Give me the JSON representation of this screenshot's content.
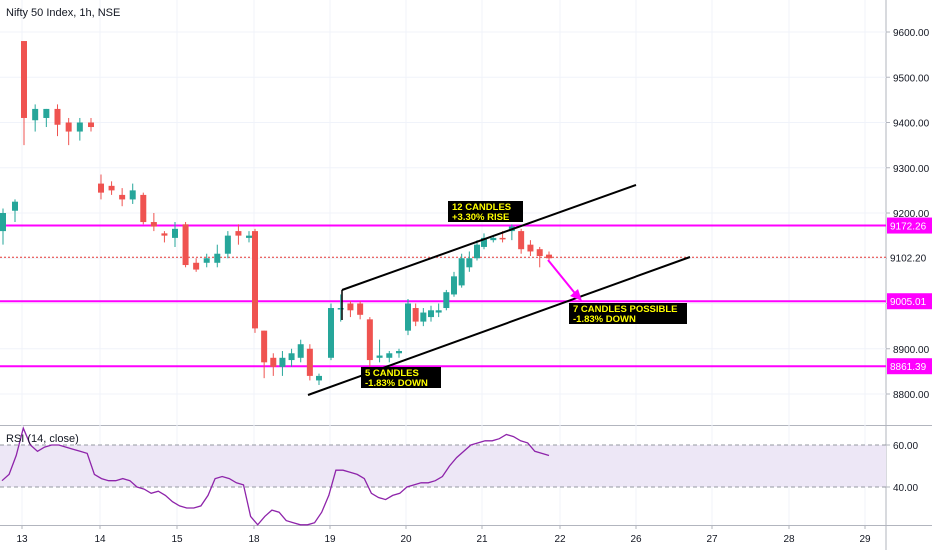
{
  "chart_data": {
    "type": "candlestick",
    "title": "Nifty 50 Index, 1h, NSE",
    "price_axis": {
      "ylim": [
        8740,
        9700
      ],
      "ticks": [
        "9600.00",
        "9500.00",
        "9400.00",
        "9300.00",
        "9200.00",
        "9100.00",
        "9000.00",
        "8900.00",
        "8800.00"
      ],
      "tick_values": [
        9600,
        9500,
        9400,
        9300,
        9200,
        9100,
        9000,
        8900,
        8800
      ]
    },
    "x_axis": {
      "labels": [
        "13",
        "14",
        "15",
        "18",
        "19",
        "20",
        "21",
        "22",
        "26",
        "27",
        "28",
        "29"
      ]
    },
    "levels": [
      {
        "value": 9172.26,
        "label": "9172.26",
        "color": "#ff00ff",
        "style": "solid"
      },
      {
        "value": 9005.01,
        "label": "9005.01",
        "color": "#ff00ff",
        "style": "solid"
      },
      {
        "value": 8861.39,
        "label": "8861.39",
        "color": "#ff00ff",
        "style": "solid"
      },
      {
        "value": 9102.2,
        "label": "9102.20",
        "color": "#e53935",
        "style": "dotted"
      }
    ],
    "candles": [
      [
        9160,
        9200,
        9130,
        9210,
        "up"
      ],
      [
        9205,
        9225,
        9180,
        9230,
        "up"
      ],
      [
        9580,
        9410,
        9350,
        9580,
        "down"
      ],
      [
        9405,
        9430,
        9380,
        9440,
        "up"
      ],
      [
        9410,
        9430,
        9390,
        9430,
        "up"
      ],
      [
        9430,
        9395,
        9370,
        9440,
        "down"
      ],
      [
        9400,
        9380,
        9350,
        9410,
        "down"
      ],
      [
        9380,
        9400,
        9360,
        9410,
        "up"
      ],
      [
        9400,
        9390,
        9380,
        9410,
        "down"
      ],
      [
        9265,
        9245,
        9230,
        9285,
        "down"
      ],
      [
        9260,
        9250,
        9240,
        9270,
        "down"
      ],
      [
        9240,
        9230,
        9215,
        9255,
        "down"
      ],
      [
        9230,
        9250,
        9220,
        9265,
        "up"
      ],
      [
        9240,
        9180,
        9175,
        9245,
        "down"
      ],
      [
        9180,
        9170,
        9160,
        9200,
        "down"
      ],
      [
        9155,
        9150,
        9135,
        9160,
        "down"
      ],
      [
        9145,
        9165,
        9125,
        9180,
        "up"
      ],
      [
        9175,
        9085,
        9080,
        9180,
        "down"
      ],
      [
        9090,
        9075,
        9070,
        9100,
        "down"
      ],
      [
        9090,
        9100,
        9080,
        9110,
        "up"
      ],
      [
        9090,
        9110,
        9080,
        9130,
        "up"
      ],
      [
        9110,
        9150,
        9100,
        9160,
        "up"
      ],
      [
        9160,
        9150,
        9130,
        9175,
        "down"
      ],
      [
        9145,
        9150,
        9135,
        9160,
        "up"
      ],
      [
        9160,
        8945,
        8935,
        9165,
        "down"
      ],
      [
        8940,
        8870,
        8835,
        8940,
        "down"
      ],
      [
        8880,
        8860,
        8840,
        8890,
        "down"
      ],
      [
        8860,
        8880,
        8840,
        8895,
        "up"
      ],
      [
        8875,
        8890,
        8860,
        8900,
        "up"
      ],
      [
        8880,
        8910,
        8870,
        8920,
        "up"
      ],
      [
        8900,
        8840,
        8830,
        8910,
        "down"
      ],
      [
        8830,
        8840,
        8820,
        8845,
        "up"
      ],
      [
        8880,
        8990,
        8875,
        9000,
        "up"
      ],
      [
        8990,
        8990,
        8960,
        9020,
        "up"
      ],
      [
        9000,
        8985,
        8970,
        9005,
        "down"
      ],
      [
        9000,
        8975,
        8965,
        9005,
        "down"
      ],
      [
        8965,
        8875,
        8860,
        8970,
        "down"
      ],
      [
        8880,
        8885,
        8870,
        8920,
        "up"
      ],
      [
        8880,
        8890,
        8870,
        8895,
        "up"
      ],
      [
        8890,
        8895,
        8880,
        8900,
        "up"
      ],
      [
        8940,
        9000,
        8930,
        9010,
        "up"
      ],
      [
        8990,
        8960,
        8950,
        9000,
        "down"
      ],
      [
        8960,
        8980,
        8950,
        8990,
        "up"
      ],
      [
        8970,
        8985,
        8960,
        8995,
        "up"
      ],
      [
        8980,
        8985,
        8970,
        9000,
        "up"
      ],
      [
        8990,
        9025,
        8985,
        9030,
        "up"
      ],
      [
        9020,
        9060,
        9015,
        9070,
        "up"
      ],
      [
        9040,
        9100,
        9035,
        9110,
        "up"
      ],
      [
        9080,
        9100,
        9070,
        9115,
        "up"
      ],
      [
        9100,
        9130,
        9095,
        9140,
        "up"
      ],
      [
        9125,
        9145,
        9120,
        9155,
        "up"
      ],
      [
        9140,
        9145,
        9135,
        9150,
        "up"
      ],
      [
        9145,
        9145,
        9135,
        9160,
        "down"
      ],
      [
        9160,
        9170,
        9140,
        9175,
        "up"
      ],
      [
        9160,
        9120,
        9110,
        9165,
        "down"
      ],
      [
        9130,
        9115,
        9105,
        9140,
        "down"
      ],
      [
        9120,
        9105,
        9080,
        9125,
        "down"
      ],
      [
        9108,
        9100,
        9095,
        9115,
        "down"
      ]
    ],
    "annotations": [
      {
        "lines": [
          "12 CANDLES",
          "+3.30% RISE"
        ]
      },
      {
        "lines": [
          "5 CANDLES",
          "-1.83% DOWN"
        ]
      },
      {
        "lines": [
          "7 CANDLES POSSIBLE",
          "-1.83% DOWN"
        ]
      }
    ],
    "rsi": {
      "label": "RSI (14, close)",
      "band": [
        40,
        60
      ],
      "ticks": [
        "60.00",
        "40.00"
      ],
      "tick_values": [
        60,
        40
      ],
      "ylim": [
        21.5,
        70
      ],
      "values": [
        43,
        46,
        55,
        68,
        60,
        57,
        59,
        60,
        60,
        59,
        58,
        57,
        56,
        46,
        44,
        43,
        43,
        44,
        43,
        40,
        39,
        37,
        38,
        36,
        33,
        31,
        30,
        30,
        31,
        36,
        44,
        45,
        44,
        42,
        41,
        26,
        22,
        26,
        29,
        28,
        24,
        23,
        22,
        22,
        23,
        28,
        36,
        48,
        48,
        47,
        46,
        44,
        37,
        35,
        34,
        36,
        37,
        40,
        41,
        42,
        42,
        43,
        45,
        50,
        54,
        57,
        60,
        61,
        62,
        62,
        63,
        65,
        64,
        62,
        61,
        57,
        56,
        55
      ]
    },
    "colors": {
      "up": "#26a69a",
      "down": "#ef5350",
      "level": "#ff00ff",
      "rsi_line": "#8e24aa",
      "rsi_band": "#ede7f6",
      "annotation_bg": "#000000",
      "annotation_text": "#ffff00"
    }
  }
}
